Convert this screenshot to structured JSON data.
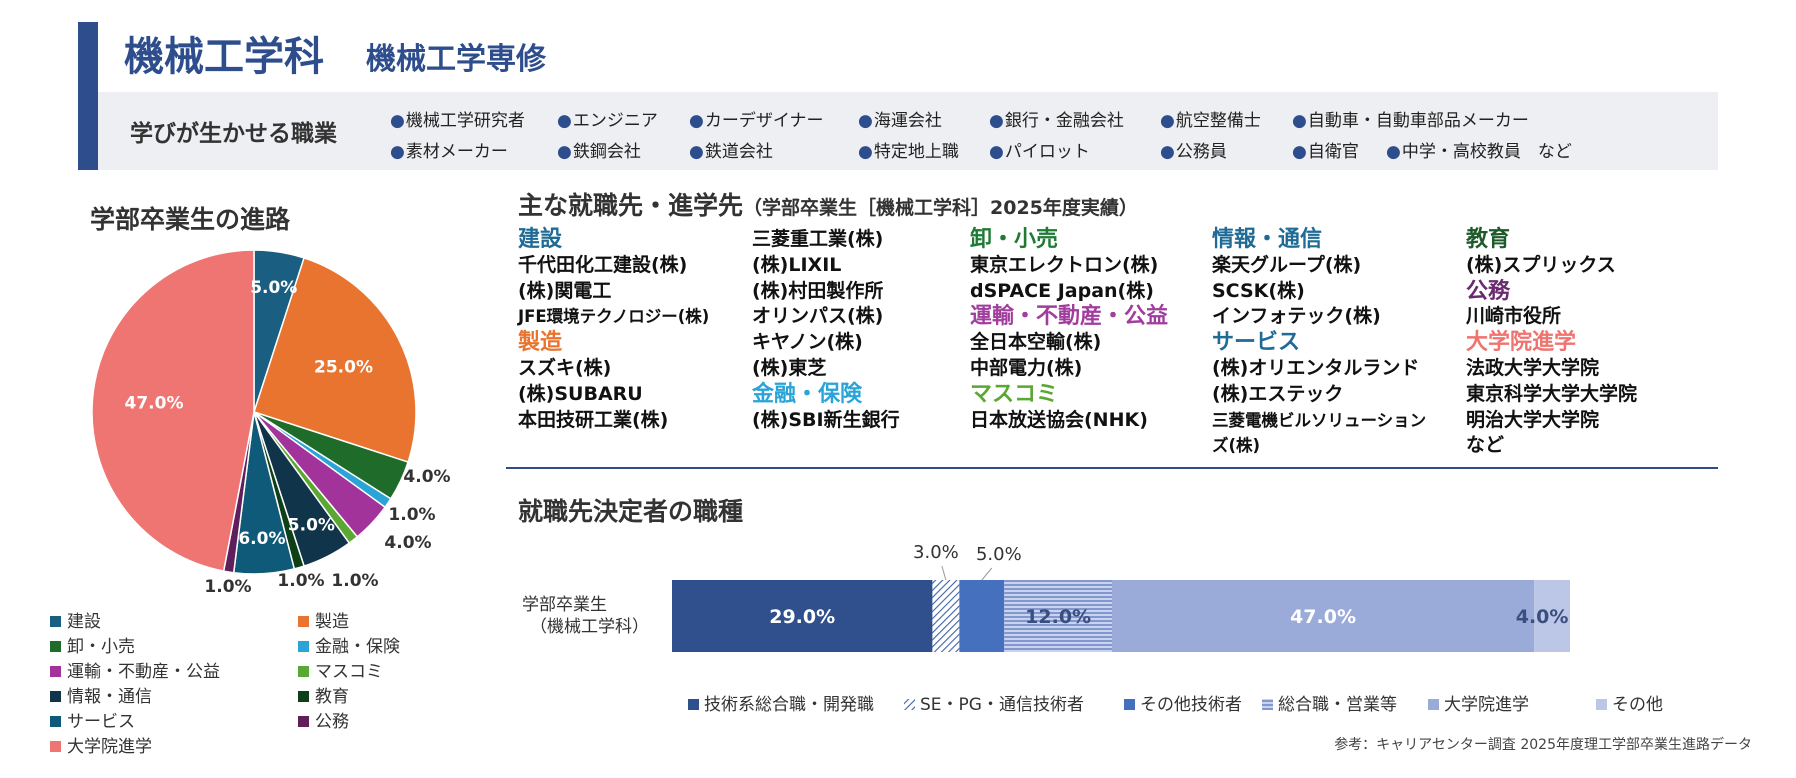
{
  "header": {
    "title": "機械工学科",
    "subtitle": "機械工学専修",
    "career_label": "学びが生かせる職業",
    "careers_row1": [
      "機械工学研究者",
      "エンジニア",
      "カーデザイナー",
      "海運会社",
      "銀行・金融会社",
      "航空整備士",
      "自動車・自動車部品メーカー"
    ],
    "careers_row2": [
      "素材メーカー",
      "鉄鋼会社",
      "鉄道会社",
      "特定地上職",
      "パイロット",
      "公務員",
      "自衛官",
      "中学・高校教員　など"
    ]
  },
  "pie_section": {
    "title": "学部卒業生の進路"
  },
  "destinations": {
    "title": "主な就職先・進学先",
    "note": "（学部卒業生［機械工学科］2025年度実績）",
    "columns": [
      [
        {
          "t": "建設",
          "cat": true,
          "color": "#1f6b96"
        },
        {
          "t": "千代田化工建設(株)"
        },
        {
          "t": "(株)関電工"
        },
        {
          "t": "JFE環境テクノロジー(株)",
          "small": true
        },
        {
          "t": "製造",
          "cat": true,
          "color": "#e9742f"
        },
        {
          "t": "スズキ(株)"
        },
        {
          "t": "(株)SUBARU"
        },
        {
          "t": "本田技研工業(株)"
        }
      ],
      [
        {
          "t": "三菱重工業(株)"
        },
        {
          "t": "(株)LIXIL"
        },
        {
          "t": "(株)村田製作所"
        },
        {
          "t": "オリンパス(株)"
        },
        {
          "t": "キヤノン(株)"
        },
        {
          "t": "(株)東芝"
        },
        {
          "t": "金融・保険",
          "cat": true,
          "color": "#2aa3d6"
        },
        {
          "t": "(株)SBI新生銀行"
        }
      ],
      [
        {
          "t": "卸・小売",
          "cat": true,
          "color": "#1f7a34"
        },
        {
          "t": "東京エレクトロン(株)"
        },
        {
          "t": "dSPACE Japan(株)"
        },
        {
          "t": "運輸・不動産・公益",
          "cat": true,
          "color": "#a13d9c"
        },
        {
          "t": "全日本空輸(株)"
        },
        {
          "t": "中部電力(株)"
        },
        {
          "t": "マスコミ",
          "cat": true,
          "color": "#5aa832"
        },
        {
          "t": "日本放送協会(NHK)"
        }
      ],
      [
        {
          "t": "情報・通信",
          "cat": true,
          "color": "#1f6b96"
        },
        {
          "t": "楽天グループ(株)"
        },
        {
          "t": "SCSK(株)"
        },
        {
          "t": "インフォテック(株)"
        },
        {
          "t": "サービス",
          "cat": true,
          "color": "#1f6b96"
        },
        {
          "t": "(株)オリエンタルランド"
        },
        {
          "t": "(株)エステック"
        },
        {
          "t": "三菱電機ビルソリューション",
          "small": true
        },
        {
          "t": "ズ(株)",
          "small": true
        }
      ],
      [
        {
          "t": "教育",
          "cat": true,
          "color": "#1e5a2a"
        },
        {
          "t": "(株)スプリックス"
        },
        {
          "t": "公務",
          "cat": true,
          "color": "#6a2a6e"
        },
        {
          "t": "川崎市役所"
        },
        {
          "t": "大学院進学",
          "cat": true,
          "color": "#ef7470"
        },
        {
          "t": "法政大学大学院"
        },
        {
          "t": "東京科学大学大学院"
        },
        {
          "t": "明治大学大学院"
        },
        {
          "t": "など"
        }
      ]
    ]
  },
  "jobs_section": {
    "title": "就職先決定者の職種"
  },
  "source_note": "参考：キャリアセンター調査 2025年度理工学部卒業生進路データ",
  "chart_data": [
    {
      "type": "pie",
      "title": "学部卒業生の進路",
      "labels": [
        "建設",
        "製造",
        "卸・小売",
        "金融・保険",
        "運輸・不動産・公益",
        "マスコミ",
        "情報・通信",
        "教育",
        "サービス",
        "公務",
        "大学院進学"
      ],
      "values": [
        5.0,
        25.0,
        4.0,
        1.0,
        4.0,
        1.0,
        5.0,
        1.0,
        6.0,
        1.0,
        47.0
      ],
      "value_labels": [
        "5.0%",
        "25.0%",
        "4.0%",
        "1.0%",
        "4.0%",
        "1.0%",
        "5.0%",
        "1.0%",
        "6.0%",
        "1.0%",
        "47.0%"
      ],
      "colors": [
        "#1a5f82",
        "#e9742f",
        "#1f6b2a",
        "#2aa3d6",
        "#a1339b",
        "#5aa832",
        "#103449",
        "#0e4018",
        "#0e5a78",
        "#5e1f5c",
        "#ef7573"
      ],
      "legend_placement": "bottom"
    },
    {
      "type": "bar",
      "orientation": "horizontal",
      "stacked": true,
      "title": "就職先決定者の職種",
      "categories": [
        "学部卒業生（機械工学科）"
      ],
      "category_lines": [
        "学部卒業生",
        "（機械工学科）"
      ],
      "series": [
        {
          "name": "技術系総合職・開発職",
          "values": [
            29.0
          ],
          "label": "29.0%",
          "color": "#2f4f8d",
          "pattern": "solid"
        },
        {
          "name": "SE・PG・通信技術者",
          "values": [
            3.0
          ],
          "label": "3.0%",
          "color": "#3f63a8",
          "pattern": "diagonal"
        },
        {
          "name": "その他技術者",
          "values": [
            5.0
          ],
          "label": "5.0%",
          "color": "#4470be",
          "pattern": "solid"
        },
        {
          "name": "総合職・営業等",
          "values": [
            12.0
          ],
          "label": "12.0%",
          "color": "#7b93c9",
          "pattern": "horizontal"
        },
        {
          "name": "大学院進学",
          "values": [
            47.0
          ],
          "label": "47.0%",
          "color": "#9aabd9",
          "pattern": "solid"
        },
        {
          "name": "その他",
          "values": [
            4.0
          ],
          "label": "4.0%",
          "color": "#bcc6e6",
          "pattern": "solid"
        }
      ],
      "xlim": [
        0,
        100
      ],
      "legend_placement": "bottom"
    }
  ]
}
